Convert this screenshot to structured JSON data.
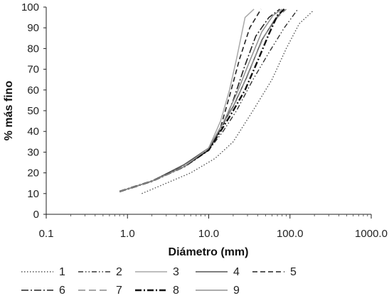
{
  "chart_data": {
    "type": "line",
    "xscale": "log",
    "xlabel": "Diámetro (mm)",
    "ylabel": "% más fino",
    "xlim": [
      0.1,
      1000
    ],
    "ylim": [
      0,
      100
    ],
    "xticks": [
      {
        "value": 0.1,
        "label": "0.1"
      },
      {
        "value": 1,
        "label": "1.0"
      },
      {
        "value": 10,
        "label": "10.0"
      },
      {
        "value": 100,
        "label": "100.0"
      },
      {
        "value": 1000,
        "label": "1000.0"
      }
    ],
    "yticks": [
      0,
      10,
      20,
      30,
      40,
      50,
      60,
      70,
      80,
      90,
      100
    ],
    "grid": false,
    "legend_position": "bottom",
    "series": [
      {
        "name": "1",
        "style": "dotted",
        "color": "#555555",
        "x": [
          1.5,
          3,
          6,
          12,
          20,
          35,
          60,
          90,
          130,
          190
        ],
        "y": [
          10,
          15,
          20,
          27,
          35,
          50,
          65,
          80,
          92,
          98
        ]
      },
      {
        "name": "2",
        "style": "dash-dot-dot",
        "color": "#333333",
        "x": [
          0.8,
          2,
          5,
          10,
          15,
          22,
          35,
          55,
          85,
          125
        ],
        "y": [
          11,
          16,
          23,
          31,
          40,
          50,
          65,
          78,
          90,
          99
        ]
      },
      {
        "name": "3",
        "style": "solid",
        "color": "#a8a8a8",
        "x": [
          0.8,
          2,
          5,
          10,
          14,
          18,
          22,
          28,
          36
        ],
        "y": [
          11,
          16,
          24,
          32,
          45,
          60,
          75,
          95,
          99
        ]
      },
      {
        "name": "4",
        "style": "solid",
        "color": "#555555",
        "x": [
          0.8,
          2,
          5,
          10,
          14,
          20,
          30,
          45,
          65,
          85
        ],
        "y": [
          11,
          16,
          24,
          32,
          42,
          52,
          67,
          84,
          94,
          99
        ]
      },
      {
        "name": "5",
        "style": "dashed",
        "color": "#222222",
        "x": [
          0.8,
          2,
          5,
          10,
          14,
          18,
          24,
          32,
          44
        ],
        "y": [
          11,
          16,
          23,
          31,
          42,
          57,
          75,
          90,
          99
        ]
      },
      {
        "name": "6",
        "style": "long-dash-dot",
        "color": "#222222",
        "x": [
          0.8,
          2,
          5,
          10,
          15,
          20,
          28,
          38,
          55,
          75
        ],
        "y": [
          11,
          16,
          23,
          31,
          43,
          55,
          72,
          86,
          95,
          99
        ]
      },
      {
        "name": "7",
        "style": "long-dash",
        "color": "#888888",
        "x": [
          0.8,
          2,
          5,
          10,
          15,
          22,
          32,
          48,
          70,
          90
        ],
        "y": [
          11,
          16,
          23,
          32,
          44,
          55,
          70,
          86,
          95,
          99
        ]
      },
      {
        "name": "8",
        "style": "heavy-dash-dot",
        "color": "#111111",
        "x": [
          0.8,
          2,
          5,
          10,
          15,
          20,
          28,
          40,
          55,
          70,
          85
        ],
        "y": [
          11,
          16,
          23,
          31,
          42,
          50,
          60,
          74,
          87,
          96,
          99
        ]
      },
      {
        "name": "9",
        "style": "solid",
        "color": "#909090",
        "x": [
          0.8,
          2,
          5,
          10,
          15,
          22,
          32,
          45,
          62,
          80
        ],
        "y": [
          11,
          16,
          23,
          32,
          44,
          58,
          74,
          88,
          96,
          99
        ]
      }
    ]
  }
}
